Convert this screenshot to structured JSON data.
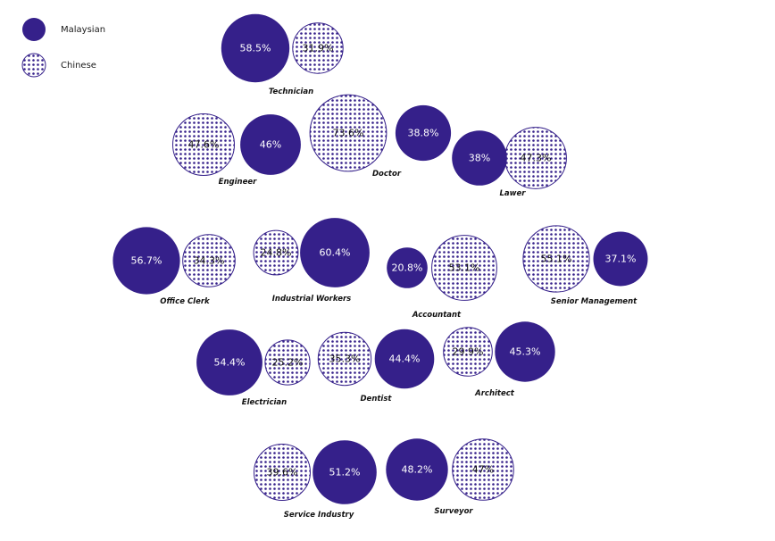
{
  "colors": {
    "malaysian": "#35208a",
    "chinese_outline": "#35208a",
    "chinese_dots": "#35208a",
    "text": "#111111"
  },
  "legend": {
    "malaysian": "Malaysian",
    "chinese": "Chinese"
  },
  "chart_data": {
    "type": "bubble",
    "series": [
      {
        "name": "Malaysian",
        "style": "solid"
      },
      {
        "name": "Chinese",
        "style": "dotted"
      }
    ],
    "categories": [
      {
        "label": "Technician",
        "malaysian": "58.5%",
        "chinese": "31.9%"
      },
      {
        "label": "Engineer",
        "malaysian": "46%",
        "chinese": "47.6%"
      },
      {
        "label": "Doctor",
        "malaysian": "38.8%",
        "chinese": "73.6%"
      },
      {
        "label": "Lawer",
        "malaysian": "38%",
        "chinese": "47.3%"
      },
      {
        "label": "Office Clerk",
        "malaysian": "56.7%",
        "chinese": "34.3%"
      },
      {
        "label": "Industrial Workers",
        "malaysian": "60.4%",
        "chinese": "24.8%"
      },
      {
        "label": "Accountant",
        "malaysian": "20.8%",
        "chinese": "53.1%"
      },
      {
        "label": "Senior Management",
        "malaysian": "37.1%",
        "chinese": "55.1%"
      },
      {
        "label": "Electrician",
        "malaysian": "54.4%",
        "chinese": "25.2%"
      },
      {
        "label": "Dentist",
        "malaysian": "44.4%",
        "chinese": "35.3%"
      },
      {
        "label": "Architect",
        "malaysian": "45.3%",
        "chinese": "29.9%"
      },
      {
        "label": "Service Industry",
        "malaysian": "51.2%",
        "chinese": "39.6%"
      },
      {
        "label": "Surveyor",
        "malaysian": "48.2%",
        "chinese": "47%"
      }
    ]
  }
}
